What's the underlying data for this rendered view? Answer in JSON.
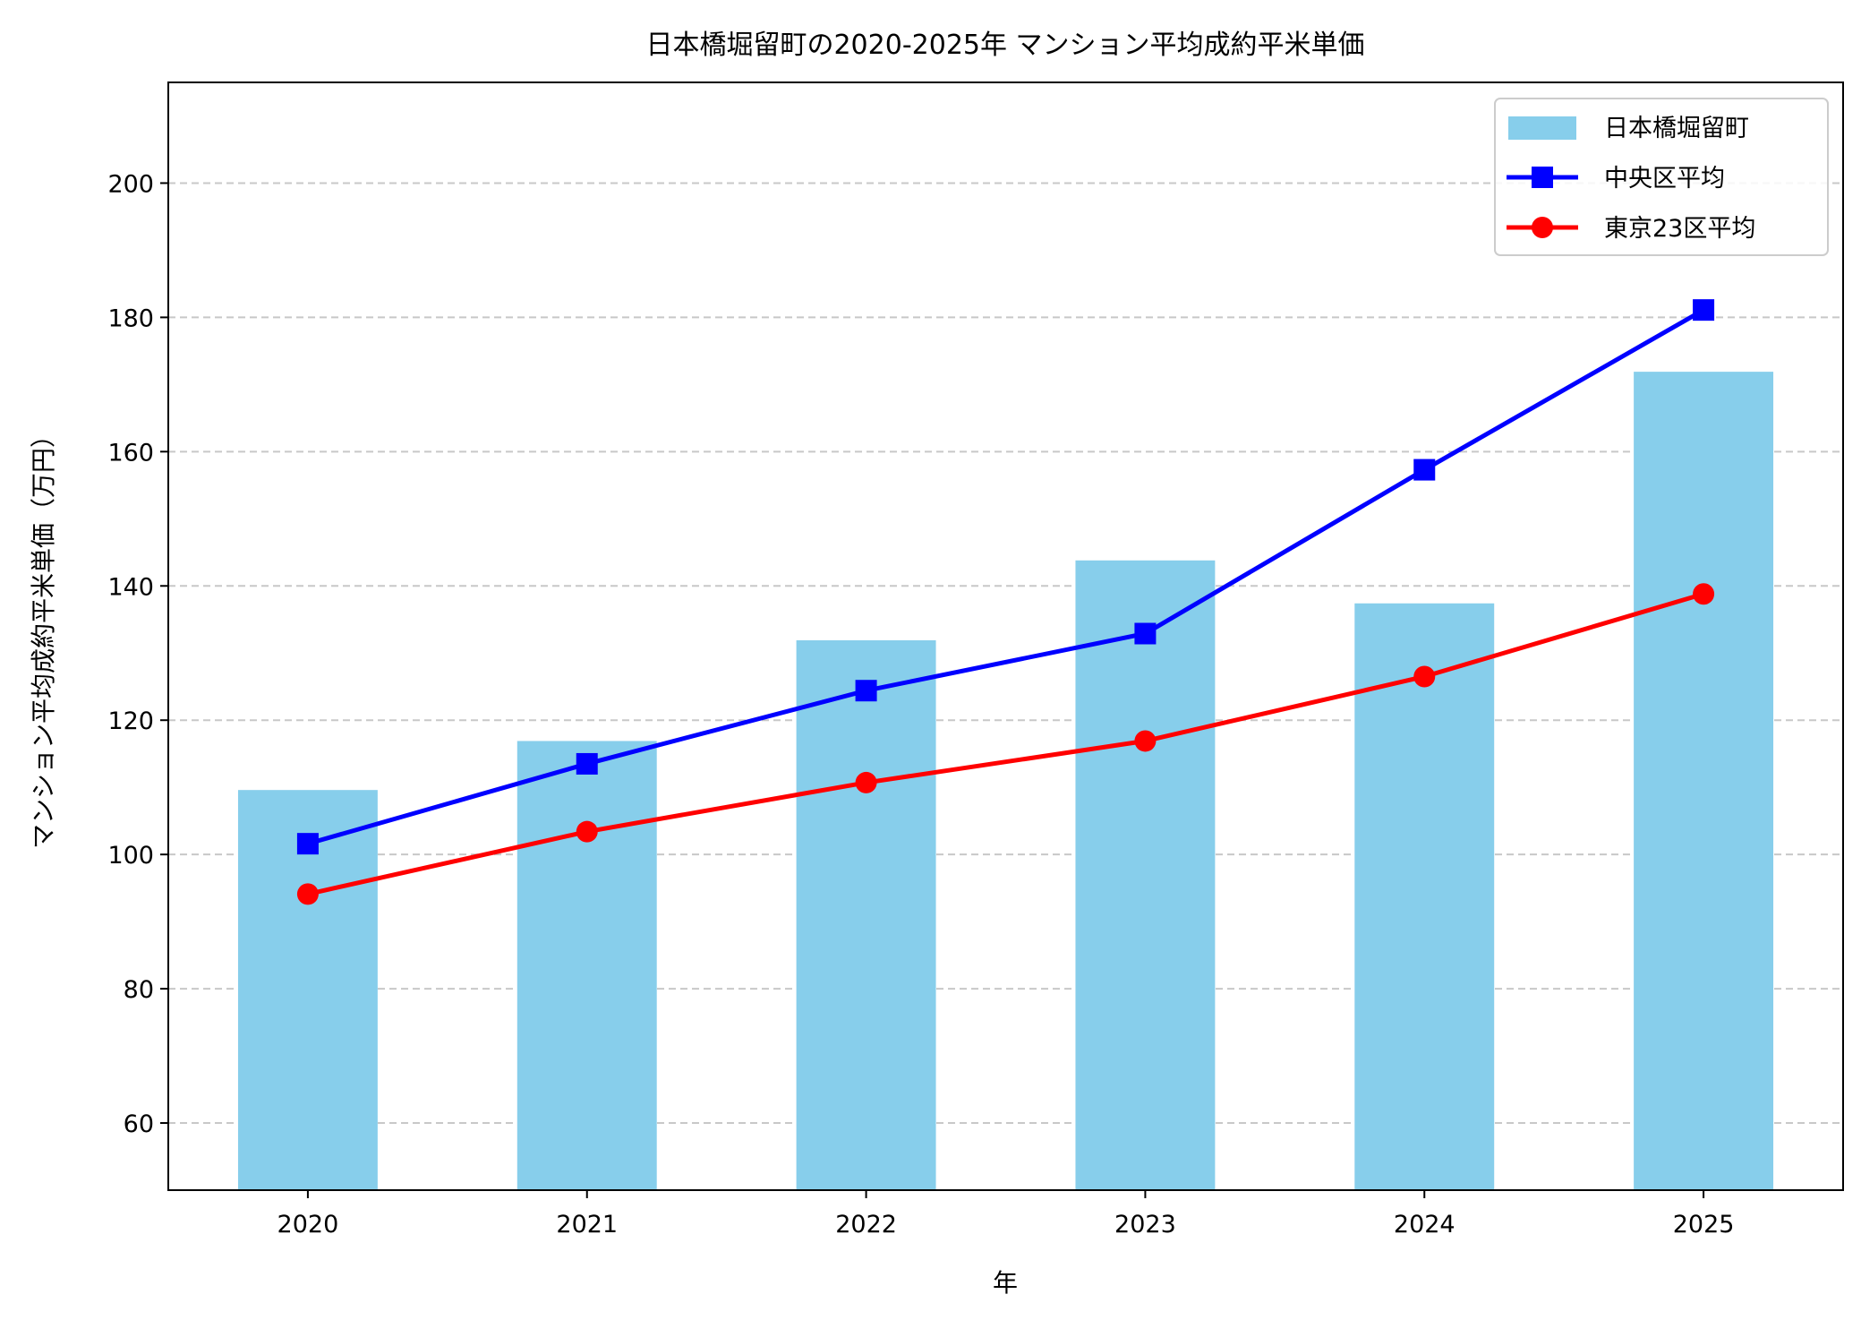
{
  "chart_data": {
    "type": "bar+line",
    "title": "日本橋堀留町の2020-2025年 マンション平均成約平米単価",
    "xlabel": "年",
    "ylabel": "マンション平均成約平米単価（万円）",
    "categories": [
      "2020",
      "2021",
      "2022",
      "2023",
      "2024",
      "2025"
    ],
    "ylim": [
      50,
      215
    ],
    "yticks": [
      60,
      80,
      100,
      120,
      140,
      160,
      180,
      200
    ],
    "grid": "y-dashed",
    "legend_position": "top-right",
    "series": [
      {
        "name": "日本橋堀留町",
        "kind": "bar",
        "color": "#87CEEB",
        "values": [
          109.6,
          116.9,
          131.9,
          143.8,
          137.4,
          171.9
        ]
      },
      {
        "name": "中央区平均",
        "kind": "line",
        "marker": "square",
        "color": "#0000FF",
        "values": [
          101.6,
          113.5,
          124.4,
          132.9,
          157.3,
          181.1
        ]
      },
      {
        "name": "東京23区平均",
        "kind": "line",
        "marker": "circle",
        "color": "#FF0000",
        "values": [
          94.1,
          103.4,
          110.7,
          116.9,
          126.5,
          138.8
        ]
      }
    ]
  }
}
